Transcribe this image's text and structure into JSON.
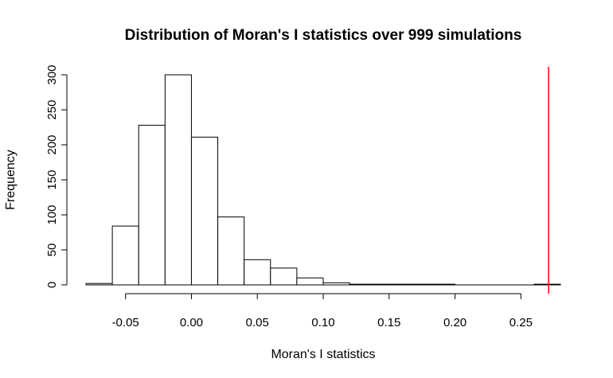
{
  "chart_data": {
    "type": "bar",
    "title": "Distribution of Moran's I statistics over 999 simulations",
    "xlabel": "Moran's I statistics",
    "ylabel": "Frequency",
    "xlim": [
      -0.08,
      0.28
    ],
    "ylim": [
      0,
      310
    ],
    "x_ticks": [
      -0.05,
      0.0,
      0.05,
      0.1,
      0.15,
      0.2,
      0.25
    ],
    "x_tick_labels": [
      "-0.05",
      "0.00",
      "0.05",
      "0.10",
      "0.15",
      "0.20",
      "0.25"
    ],
    "y_ticks": [
      0,
      50,
      100,
      150,
      200,
      250,
      300
    ],
    "y_tick_labels": [
      "0",
      "50",
      "100",
      "150",
      "200",
      "250",
      "300"
    ],
    "bins": [
      {
        "from": -0.08,
        "to": -0.06,
        "count": 2
      },
      {
        "from": -0.06,
        "to": -0.04,
        "count": 84
      },
      {
        "from": -0.04,
        "to": -0.02,
        "count": 228
      },
      {
        "from": -0.02,
        "to": 0.0,
        "count": 300
      },
      {
        "from": 0.0,
        "to": 0.02,
        "count": 211
      },
      {
        "from": 0.02,
        "to": 0.04,
        "count": 97
      },
      {
        "from": 0.04,
        "to": 0.06,
        "count": 36
      },
      {
        "from": 0.06,
        "to": 0.08,
        "count": 24
      },
      {
        "from": 0.08,
        "to": 0.1,
        "count": 10
      },
      {
        "from": 0.1,
        "to": 0.12,
        "count": 3
      },
      {
        "from": 0.12,
        "to": 0.14,
        "count": 1
      },
      {
        "from": 0.14,
        "to": 0.16,
        "count": 1
      },
      {
        "from": 0.16,
        "to": 0.18,
        "count": 1
      },
      {
        "from": 0.18,
        "to": 0.2,
        "count": 1
      },
      {
        "from": 0.2,
        "to": 0.22,
        "count": 0
      },
      {
        "from": 0.22,
        "to": 0.24,
        "count": 0
      },
      {
        "from": 0.24,
        "to": 0.26,
        "count": 0
      },
      {
        "from": 0.26,
        "to": 0.28,
        "count": 1
      }
    ],
    "reference_line": {
      "x": 0.271,
      "color": "#ff0000"
    },
    "grid": false,
    "legend": "none"
  }
}
